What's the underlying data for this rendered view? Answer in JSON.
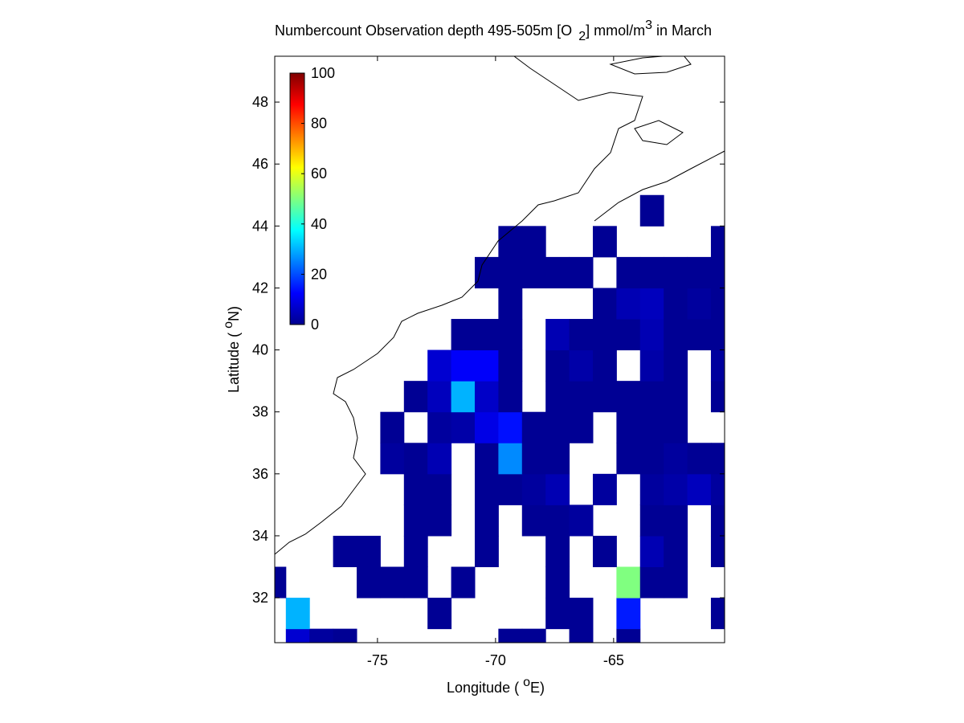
{
  "chart_data": {
    "type": "heatmap",
    "title_parts": [
      "Numbercount Observation depth 495-505m [O",
      "2",
      "] mmol/m",
      "3",
      " in March"
    ],
    "xlabel_parts": [
      "Longitude ( ",
      "o",
      "E)"
    ],
    "ylabel_parts": [
      "Latitude ( ",
      "o",
      "N)"
    ],
    "x": [
      -79.38,
      -78.38,
      -77.38,
      -76.38,
      -75.38,
      -74.38,
      -73.38,
      -72.38,
      -71.38,
      -70.38,
      -69.38,
      -68.38,
      -67.38,
      -66.38,
      -65.38,
      -64.38,
      -63.38,
      -62.38,
      -61.38,
      -60.38
    ],
    "y": [
      30.5,
      31.5,
      32.5,
      33.5,
      34.5,
      35.5,
      36.5,
      37.5,
      38.5,
      39.5,
      40.5,
      41.5,
      42.5,
      43.5,
      44.5
    ],
    "z": [
      [
        null,
        8,
        3,
        2,
        null,
        null,
        null,
        null,
        null,
        null,
        2,
        2,
        null,
        2,
        null,
        2,
        null,
        null,
        null,
        null
      ],
      [
        null,
        30,
        null,
        null,
        null,
        null,
        null,
        2,
        null,
        null,
        null,
        null,
        2,
        2,
        null,
        15,
        null,
        null,
        null,
        2
      ],
      [
        2,
        null,
        null,
        null,
        2,
        2,
        2,
        null,
        2,
        null,
        null,
        null,
        2,
        null,
        null,
        50,
        2,
        2,
        null,
        null
      ],
      [
        null,
        null,
        null,
        2,
        2,
        null,
        2,
        null,
        null,
        2,
        null,
        null,
        2,
        null,
        2,
        null,
        5,
        2,
        null,
        2
      ],
      [
        null,
        null,
        null,
        null,
        null,
        null,
        2,
        2,
        null,
        2,
        null,
        2,
        2,
        3,
        null,
        null,
        2,
        2,
        null,
        2
      ],
      [
        null,
        null,
        null,
        null,
        null,
        null,
        2,
        2,
        null,
        2,
        2,
        3,
        5,
        null,
        3,
        null,
        3,
        4,
        6,
        3
      ],
      [
        null,
        null,
        null,
        null,
        null,
        3,
        2,
        5,
        null,
        2,
        26,
        2,
        2,
        null,
        null,
        2,
        2,
        3,
        2,
        2
      ],
      [
        null,
        null,
        null,
        null,
        null,
        2,
        null,
        3,
        4,
        10,
        14,
        2,
        2,
        2,
        null,
        2,
        2,
        2,
        null,
        null
      ],
      [
        null,
        null,
        null,
        null,
        null,
        null,
        2,
        6,
        30,
        7,
        2,
        null,
        2,
        2,
        2,
        2,
        2,
        2,
        null,
        2
      ],
      [
        null,
        null,
        null,
        null,
        null,
        null,
        null,
        8,
        12,
        12,
        2,
        null,
        2,
        4,
        2,
        null,
        4,
        2,
        null,
        3
      ],
      [
        null,
        null,
        null,
        null,
        null,
        null,
        null,
        null,
        2,
        2,
        2,
        null,
        5,
        2,
        2,
        2,
        5,
        2,
        2,
        2
      ],
      [
        null,
        null,
        null,
        null,
        null,
        null,
        null,
        null,
        null,
        null,
        2,
        null,
        null,
        null,
        2,
        5,
        6,
        2,
        3,
        2
      ],
      [
        null,
        null,
        null,
        null,
        null,
        null,
        null,
        null,
        null,
        2,
        2,
        2,
        2,
        2,
        null,
        2,
        2,
        2,
        2,
        2
      ],
      [
        null,
        null,
        null,
        null,
        null,
        null,
        null,
        null,
        null,
        null,
        2,
        2,
        null,
        null,
        2,
        null,
        null,
        null,
        null,
        2
      ],
      [
        null,
        null,
        null,
        null,
        null,
        null,
        null,
        null,
        null,
        null,
        null,
        null,
        null,
        null,
        null,
        null,
        2,
        null,
        null,
        null
      ]
    ],
    "xlim": [
      -79.35,
      -60.3
    ],
    "ylim": [
      30.55,
      49.48
    ],
    "xticks": [
      -75,
      -70,
      -65
    ],
    "yticks": [
      32,
      34,
      36,
      38,
      40,
      42,
      44,
      46,
      48
    ],
    "colormap": "jet",
    "clim": [
      0,
      100
    ],
    "cticks": [
      0,
      20,
      40,
      60,
      80,
      100
    ]
  }
}
